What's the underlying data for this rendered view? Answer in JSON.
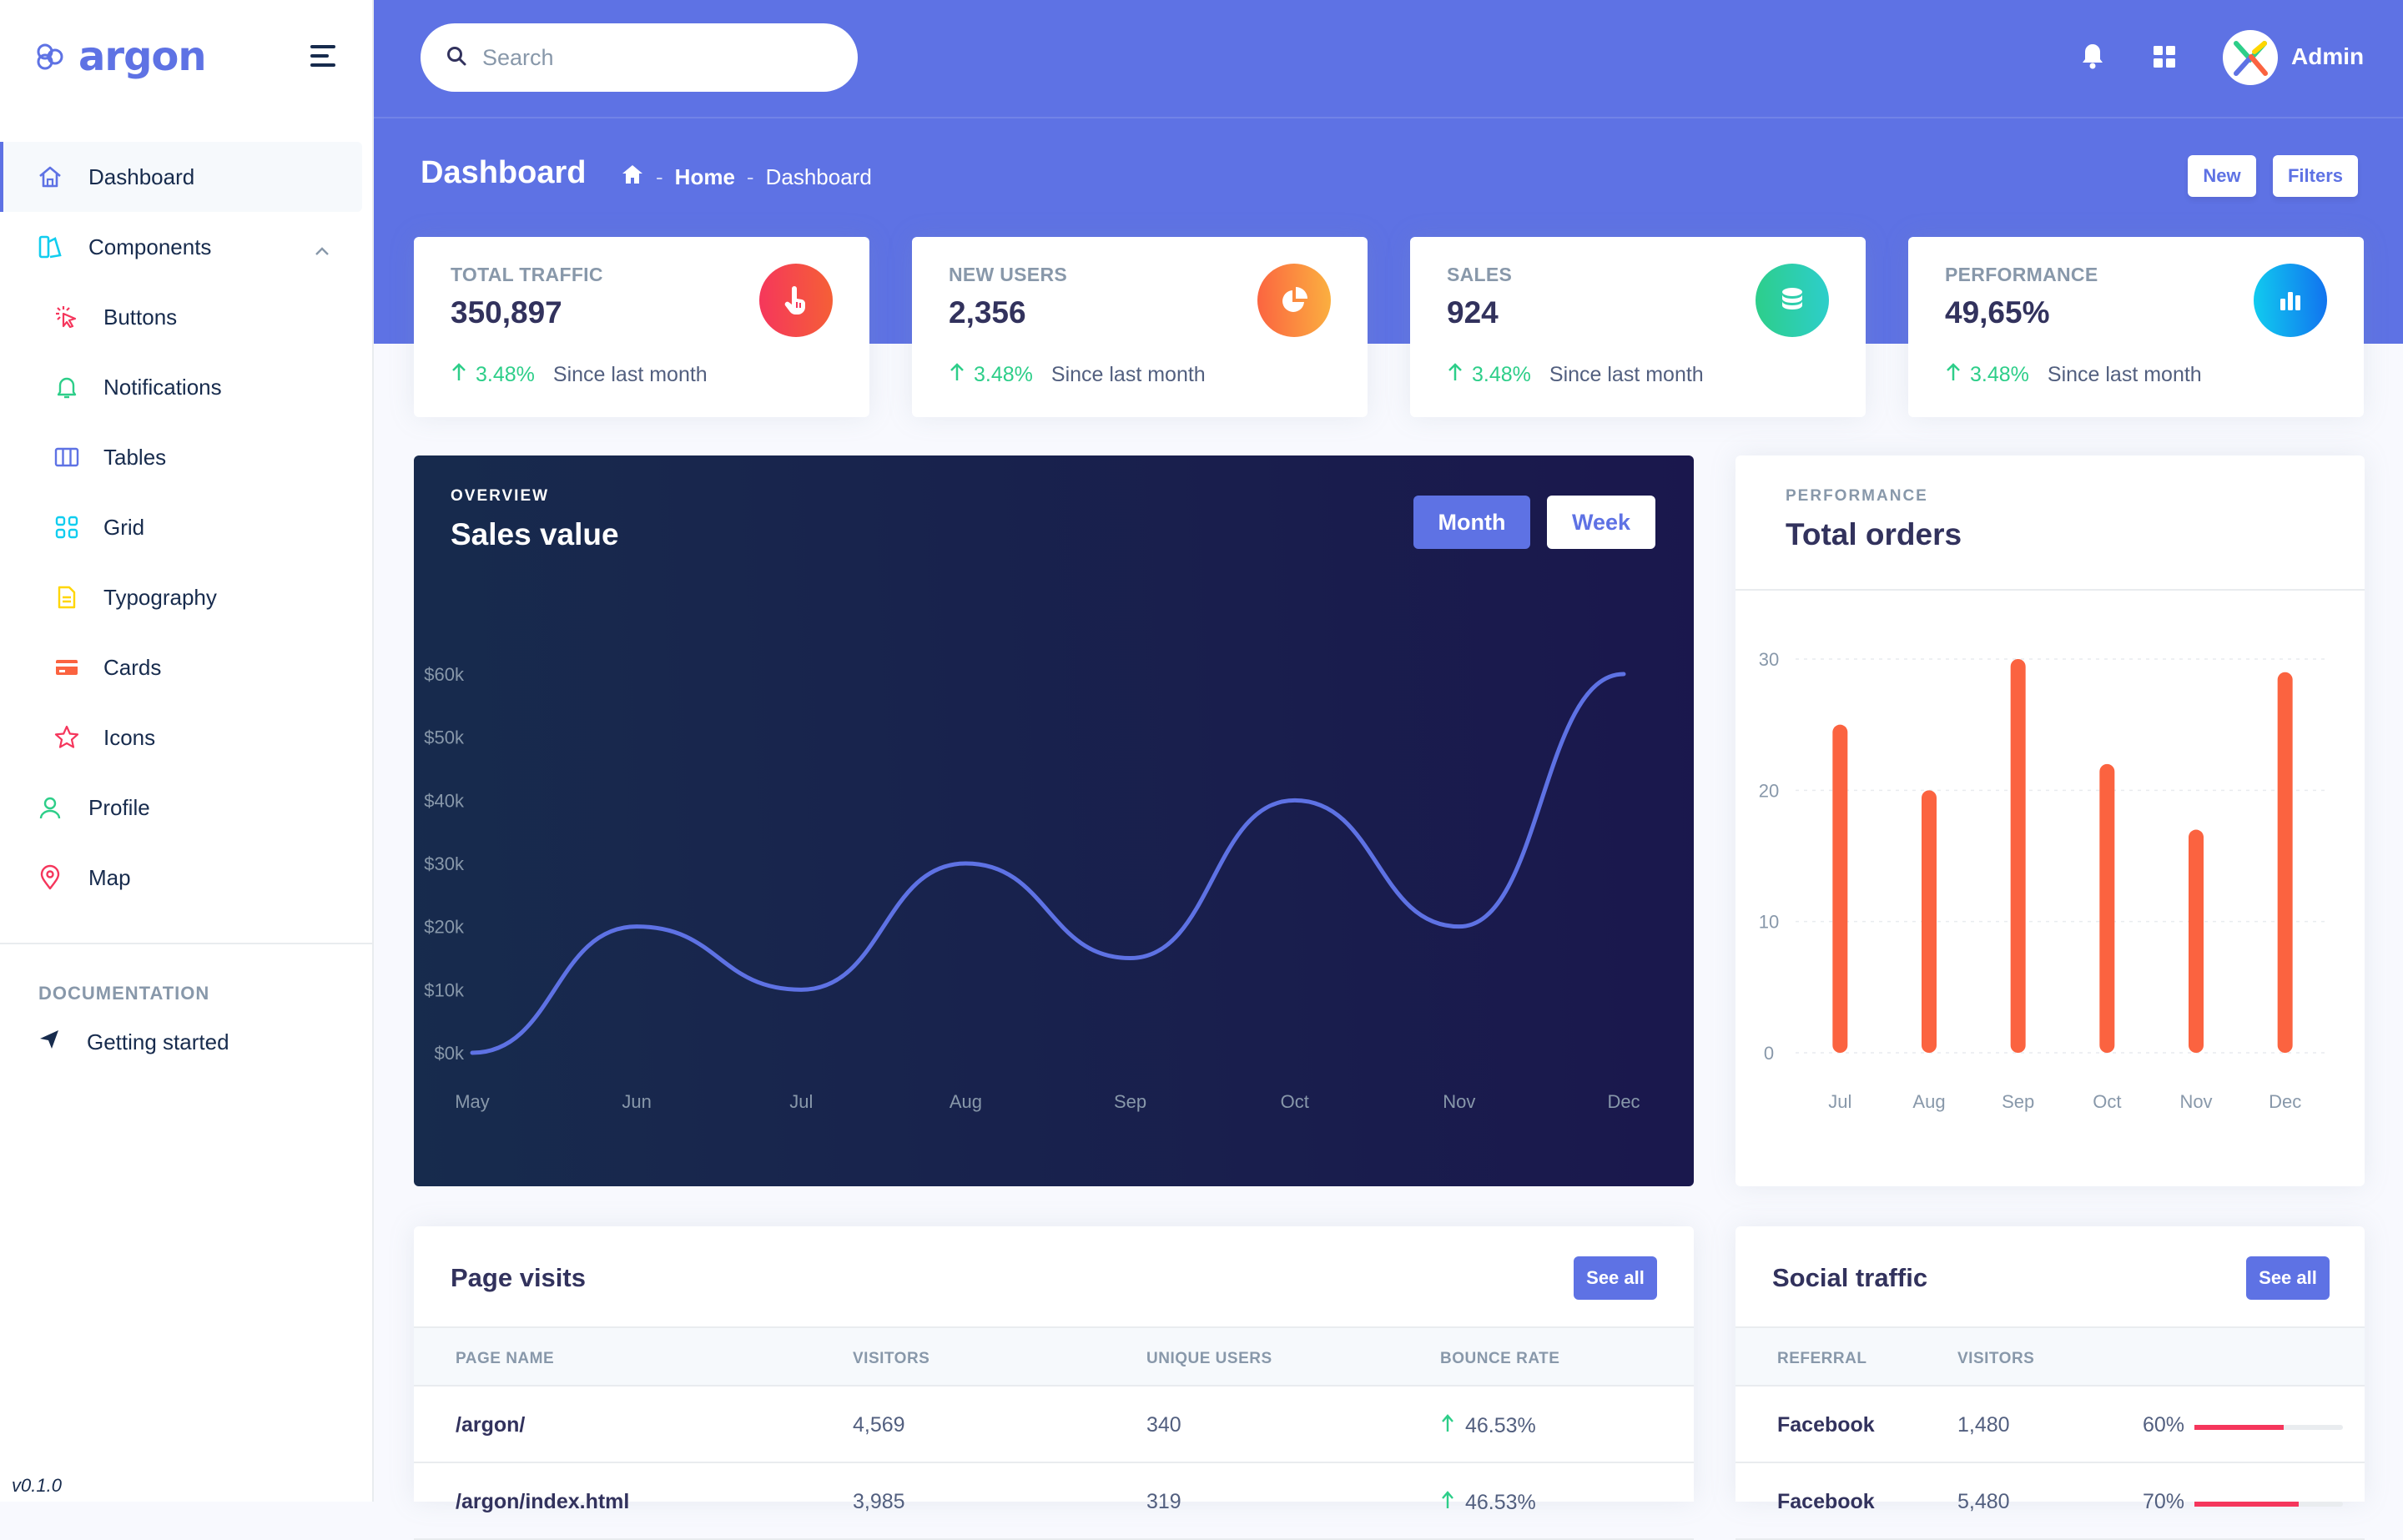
{
  "brand": {
    "name": "argon"
  },
  "sidebar": {
    "items": [
      {
        "label": "Dashboard"
      },
      {
        "label": "Components"
      },
      {
        "label": "Buttons"
      },
      {
        "label": "Notifications"
      },
      {
        "label": "Tables"
      },
      {
        "label": "Grid"
      },
      {
        "label": "Typography"
      },
      {
        "label": "Cards"
      },
      {
        "label": "Icons"
      },
      {
        "label": "Profile"
      },
      {
        "label": "Map"
      }
    ],
    "doc_heading": "DOCUMENTATION",
    "doc_items": [
      {
        "label": "Getting started"
      }
    ],
    "version": "v0.1.0"
  },
  "topbar": {
    "search_placeholder": "Search",
    "user": "Admin"
  },
  "header": {
    "title": "Dashboard",
    "breadcrumb": [
      "Home",
      "Dashboard"
    ],
    "new_label": "New",
    "filters_label": "Filters"
  },
  "stats": [
    {
      "label": "TOTAL TRAFFIC",
      "value": "350,897",
      "change": "3.48%",
      "since": "Since last month",
      "color_from": "#f5365c",
      "color_to": "#f56036",
      "icon": "hand-pointer-icon"
    },
    {
      "label": "NEW USERS",
      "value": "2,356",
      "change": "3.48%",
      "since": "Since last month",
      "color_from": "#fb6340",
      "color_to": "#fbb140",
      "icon": "pie-chart-icon"
    },
    {
      "label": "SALES",
      "value": "924",
      "change": "3.48%",
      "since": "Since last month",
      "color_from": "#2dce89",
      "color_to": "#2dcecc",
      "icon": "coins-icon"
    },
    {
      "label": "PERFORMANCE",
      "value": "49,65%",
      "change": "3.48%",
      "since": "Since last month",
      "color_from": "#11cdef",
      "color_to": "#1171ef",
      "icon": "bar-chart-icon"
    }
  ],
  "sales_card": {
    "overline": "OVERVIEW",
    "title": "Sales value",
    "month_label": "Month",
    "week_label": "Week"
  },
  "orders_card": {
    "overline": "PERFORMANCE",
    "title": "Total orders"
  },
  "chart_data": [
    {
      "type": "line",
      "title": "Sales value",
      "categories": [
        "May",
        "Jun",
        "Jul",
        "Aug",
        "Sep",
        "Oct",
        "Nov",
        "Dec"
      ],
      "values": [
        0,
        20,
        10,
        30,
        15,
        40,
        20,
        60
      ],
      "y_ticks": [
        "$0k",
        "$10k",
        "$20k",
        "$30k",
        "$40k",
        "$50k",
        "$60k"
      ],
      "ylim": [
        0,
        60
      ],
      "color": "#5e72e4"
    },
    {
      "type": "bar",
      "title": "Total orders",
      "categories": [
        "Jul",
        "Aug",
        "Sep",
        "Oct",
        "Nov",
        "Dec"
      ],
      "values": [
        25,
        20,
        30,
        22,
        17,
        29
      ],
      "y_ticks": [
        "0",
        "10",
        "20",
        "30"
      ],
      "ylim": [
        0,
        30
      ],
      "color": "#fb6340"
    }
  ],
  "page_visits": {
    "title": "Page visits",
    "see_all": "See all",
    "columns": [
      "PAGE NAME",
      "VISITORS",
      "UNIQUE USERS",
      "BOUNCE RATE"
    ],
    "rows": [
      {
        "page": "/argon/",
        "visitors": "4,569",
        "unique": "340",
        "bounce": "46.53%"
      },
      {
        "page": "/argon/index.html",
        "visitors": "3,985",
        "unique": "319",
        "bounce": "46.53%"
      }
    ]
  },
  "social_traffic": {
    "title": "Social traffic",
    "see_all": "See all",
    "columns": [
      "REFERRAL",
      "VISITORS"
    ],
    "rows": [
      {
        "referral": "Facebook",
        "visitors": "1,480",
        "percent": "60%",
        "progress": 60
      },
      {
        "referral": "Facebook",
        "visitors": "5,480",
        "percent": "70%",
        "progress": 70
      }
    ]
  },
  "colors": {
    "primary": "#5e72e4",
    "success": "#2dce89",
    "danger": "#f5365c",
    "warning": "#fb6340"
  }
}
